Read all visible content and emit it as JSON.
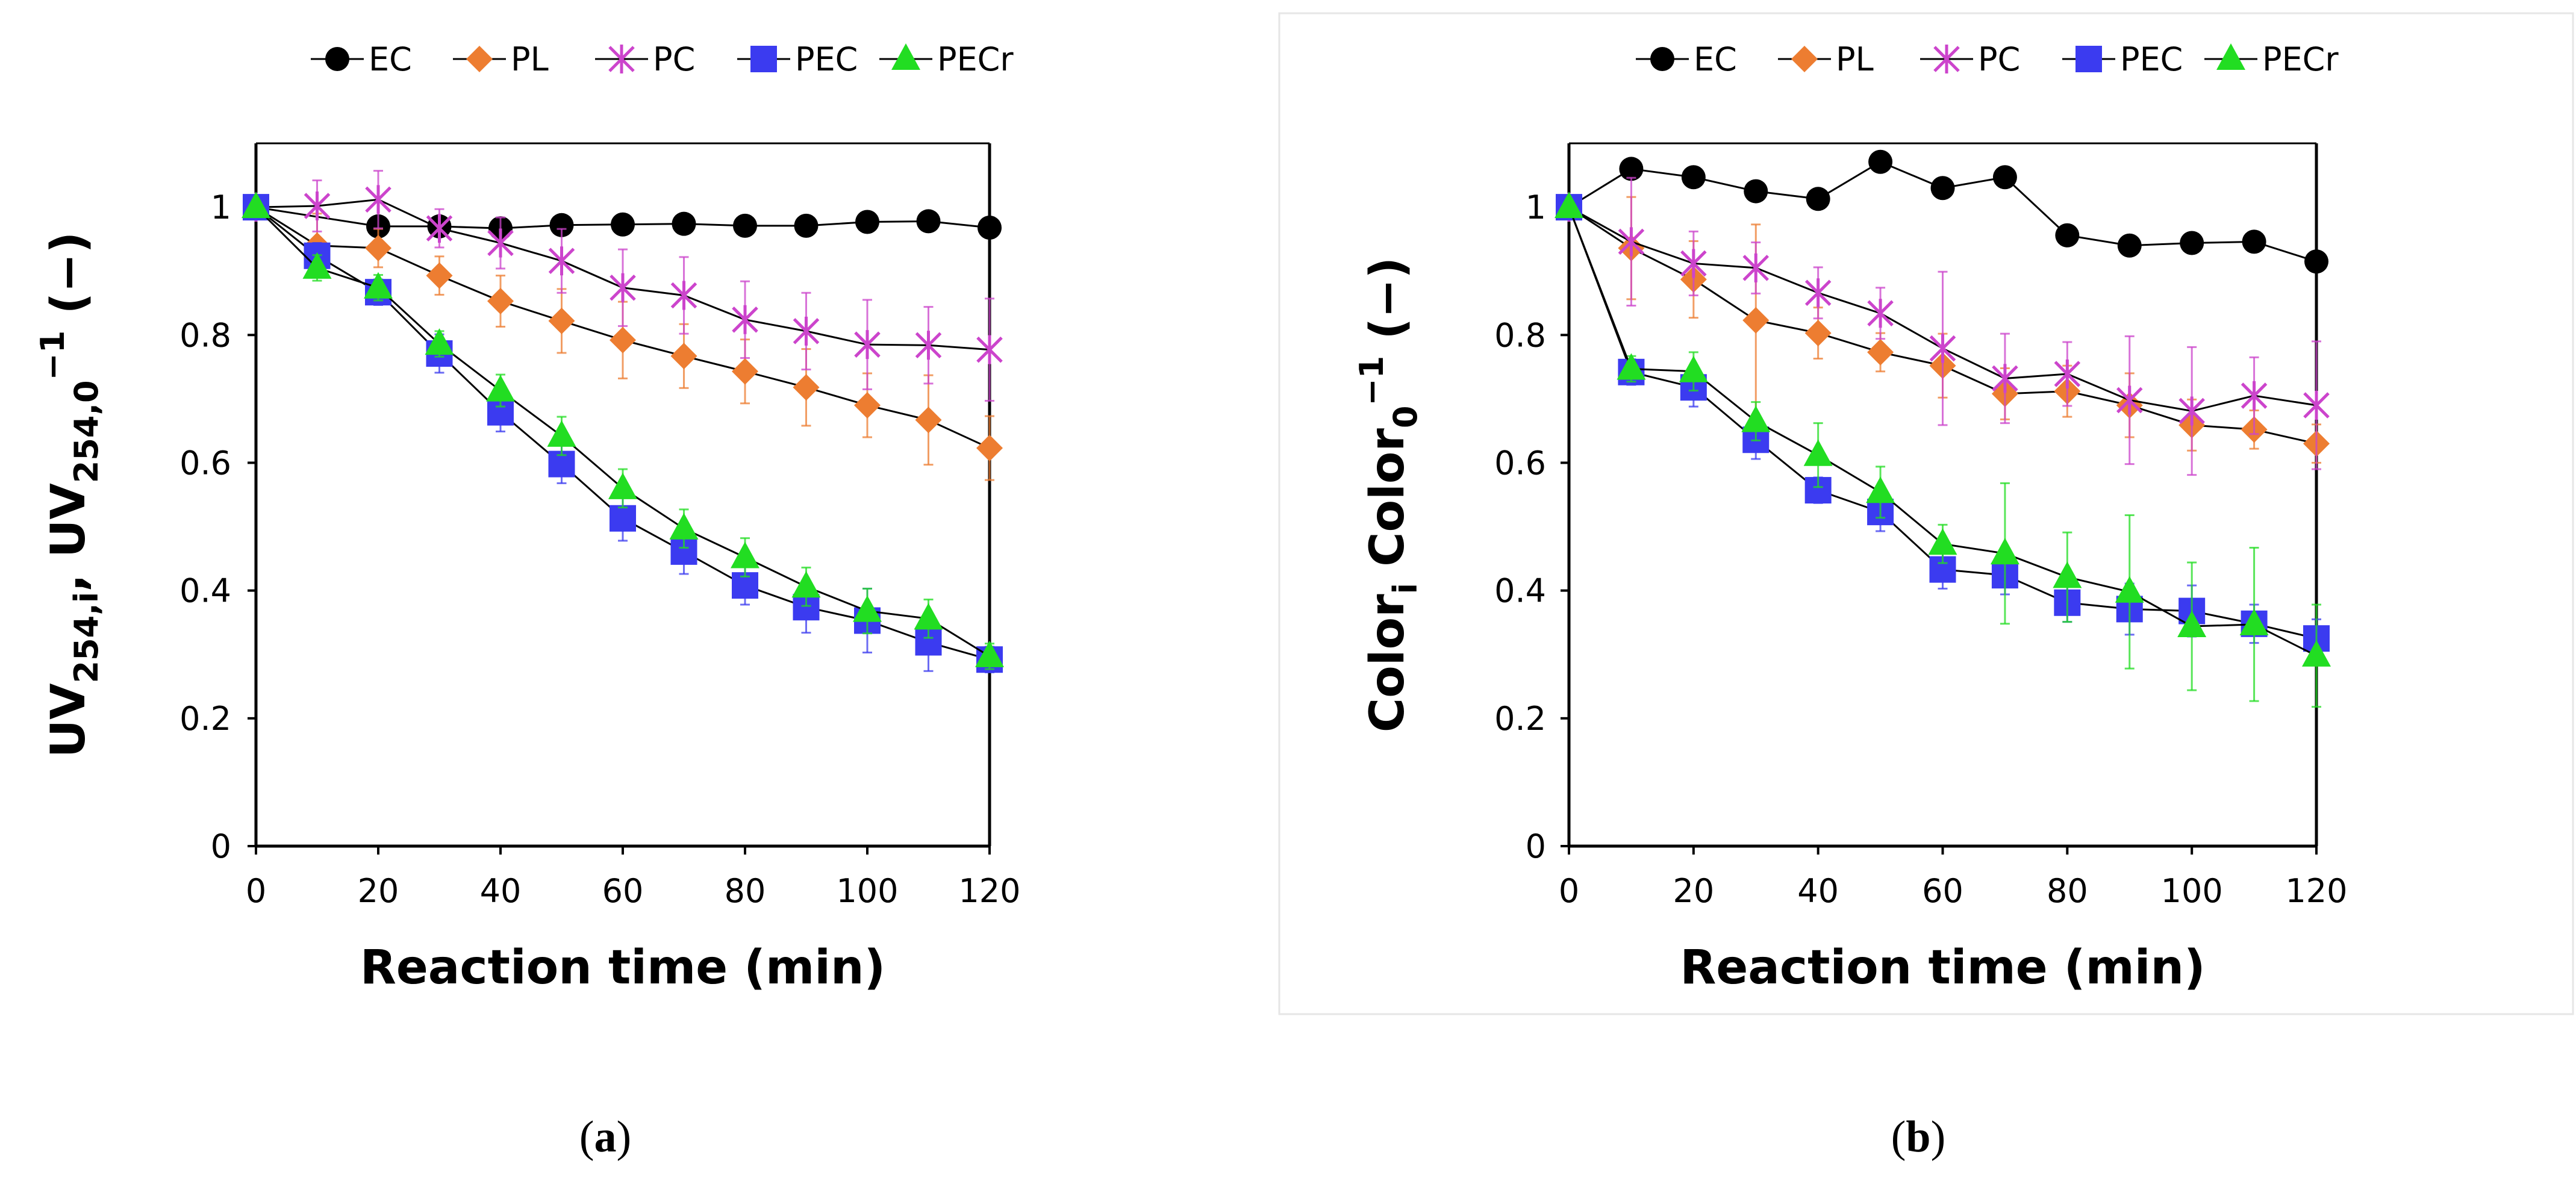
{
  "chart_data": [
    {
      "type": "line",
      "panel_label": "a",
      "title": "",
      "xlabel": "Reaction time (min)",
      "ylabel": {
        "main": "UV",
        "sub1": "254,i",
        "mid": " UV",
        "sub2": "254,0",
        "sup": "−1",
        "suffix": " (−)"
      },
      "xlim": [
        0,
        120
      ],
      "ylim": [
        0,
        1.1
      ],
      "xticks": [
        0,
        20,
        40,
        60,
        80,
        100,
        120
      ],
      "yticks": [
        0,
        0.2,
        0.4,
        0.6,
        0.8,
        1
      ],
      "ytick_labels": [
        "0",
        "0.2",
        "0.4",
        "0.6",
        "0.8",
        "1"
      ],
      "xtick_labels": [
        "0",
        "20",
        "40",
        "60",
        "80",
        "100",
        "120"
      ],
      "legend": {
        "position": "top",
        "entries": [
          "EC",
          "PL",
          "PC",
          "PEC",
          "PECr"
        ]
      },
      "x": [
        0,
        10,
        20,
        30,
        40,
        50,
        60,
        70,
        80,
        90,
        100,
        110,
        120
      ],
      "series": [
        {
          "name": "EC",
          "color": "#000000",
          "marker": "circle",
          "x": [
            0,
            20,
            30,
            40,
            50,
            60,
            70,
            80,
            90,
            100,
            110,
            120
          ],
          "values": [
            1.0,
            0.97,
            0.97,
            0.967,
            0.972,
            0.973,
            0.974,
            0.971,
            0.971,
            0.977,
            0.978,
            0.968
          ],
          "errors": [
            0,
            0,
            0,
            0,
            0,
            0,
            0,
            0,
            0,
            0,
            0,
            0
          ]
        },
        {
          "name": "PL",
          "color": "#ED7D31",
          "marker": "diamond",
          "x": [
            0,
            10,
            20,
            30,
            40,
            50,
            60,
            70,
            80,
            90,
            100,
            110,
            120
          ],
          "values": [
            1.0,
            0.94,
            0.936,
            0.893,
            0.853,
            0.822,
            0.792,
            0.767,
            0.743,
            0.718,
            0.69,
            0.667,
            0.623
          ],
          "errors": [
            0,
            0.05,
            0.03,
            0.03,
            0.04,
            0.05,
            0.06,
            0.05,
            0.05,
            0.06,
            0.05,
            0.07,
            0.05
          ]
        },
        {
          "name": "PC",
          "color": "#CC44CC",
          "marker": "asterisk",
          "x": [
            0,
            10,
            20,
            30,
            40,
            50,
            60,
            70,
            80,
            90,
            100,
            110,
            120
          ],
          "values": [
            1.0,
            1.002,
            1.012,
            0.967,
            0.944,
            0.916,
            0.874,
            0.862,
            0.824,
            0.806,
            0.785,
            0.784,
            0.777
          ],
          "errors": [
            0,
            0.04,
            0.045,
            0.03,
            0.04,
            0.05,
            0.06,
            0.06,
            0.06,
            0.06,
            0.07,
            0.06,
            0.08
          ]
        },
        {
          "name": "PEC",
          "color": "#3B3BF0",
          "marker": "square",
          "x": [
            0,
            10,
            20,
            30,
            40,
            50,
            60,
            70,
            80,
            90,
            100,
            110,
            120
          ],
          "values": [
            1.0,
            0.924,
            0.867,
            0.771,
            0.679,
            0.598,
            0.513,
            0.461,
            0.408,
            0.374,
            0.353,
            0.319,
            0.292
          ],
          "errors": [
            0,
            0.02,
            0.02,
            0.03,
            0.03,
            0.03,
            0.035,
            0.035,
            0.03,
            0.04,
            0.05,
            0.045,
            0.02
          ]
        },
        {
          "name": "PECr",
          "color": "#22DD22",
          "marker": "triangle",
          "x": [
            0,
            10,
            20,
            30,
            40,
            50,
            60,
            70,
            80,
            90,
            100,
            110,
            120
          ],
          "values": [
            1.0,
            0.905,
            0.874,
            0.786,
            0.713,
            0.642,
            0.56,
            0.497,
            0.452,
            0.406,
            0.368,
            0.356,
            0.297
          ],
          "errors": [
            0,
            0.02,
            0.02,
            0.02,
            0.025,
            0.03,
            0.03,
            0.03,
            0.03,
            0.03,
            0.035,
            0.03,
            0.02
          ]
        }
      ]
    },
    {
      "type": "line",
      "panel_label": "b",
      "title": "",
      "xlabel": "Reaction time (min)",
      "ylabel": {
        "main": "Color",
        "sub1": "i",
        "mid": " Color",
        "sub2": "0",
        "sup": "−1",
        "suffix": " (−)"
      },
      "xlim": [
        0,
        120
      ],
      "ylim": [
        0,
        1.1
      ],
      "xticks": [
        0,
        20,
        40,
        60,
        80,
        100,
        120
      ],
      "yticks": [
        0,
        0.2,
        0.4,
        0.6,
        0.8,
        1
      ],
      "ytick_labels": [
        "0",
        "0.2",
        "0.4",
        "0.6",
        "0.8",
        "1"
      ],
      "xtick_labels": [
        "0",
        "20",
        "40",
        "60",
        "80",
        "100",
        "120"
      ],
      "legend": {
        "position": "top",
        "entries": [
          "EC",
          "PL",
          "PC",
          "PEC",
          "PECr"
        ]
      },
      "x": [
        0,
        10,
        20,
        30,
        40,
        50,
        60,
        70,
        80,
        90,
        100,
        110,
        120
      ],
      "series": [
        {
          "name": "EC",
          "color": "#000000",
          "marker": "circle",
          "x": [
            0,
            10,
            20,
            30,
            40,
            50,
            60,
            70,
            80,
            90,
            100,
            110,
            120
          ],
          "values": [
            1.0,
            1.06,
            1.047,
            1.025,
            1.013,
            1.071,
            1.03,
            1.047,
            0.956,
            0.94,
            0.944,
            0.946,
            0.915
          ],
          "errors": [
            0,
            0,
            0,
            0,
            0,
            0,
            0,
            0,
            0,
            0,
            0,
            0,
            0
          ]
        },
        {
          "name": "PL",
          "color": "#ED7D31",
          "marker": "diamond",
          "x": [
            0,
            10,
            20,
            30,
            40,
            50,
            60,
            70,
            80,
            90,
            100,
            110,
            120
          ],
          "values": [
            1.0,
            0.936,
            0.887,
            0.823,
            0.803,
            0.773,
            0.752,
            0.708,
            0.712,
            0.69,
            0.659,
            0.652,
            0.63
          ],
          "errors": [
            0,
            0.08,
            0.06,
            0.15,
            0.04,
            0.03,
            0.05,
            0.04,
            0.04,
            0.05,
            0.04,
            0.03,
            0.03
          ]
        },
        {
          "name": "PC",
          "color": "#CC44CC",
          "marker": "asterisk",
          "x": [
            0,
            10,
            20,
            30,
            40,
            50,
            60,
            70,
            80,
            90,
            100,
            110,
            120
          ],
          "values": [
            1.0,
            0.946,
            0.912,
            0.905,
            0.866,
            0.834,
            0.779,
            0.732,
            0.739,
            0.698,
            0.681,
            0.705,
            0.69
          ],
          "errors": [
            0,
            0.1,
            0.05,
            0.04,
            0.04,
            0.04,
            0.12,
            0.07,
            0.05,
            0.1,
            0.1,
            0.06,
            0.1
          ]
        },
        {
          "name": "PEC",
          "color": "#3B3BF0",
          "marker": "square",
          "x": [
            0,
            10,
            20,
            30,
            40,
            50,
            60,
            70,
            80,
            90,
            100,
            110,
            120
          ],
          "values": [
            1.0,
            0.742,
            0.718,
            0.636,
            0.557,
            0.523,
            0.433,
            0.424,
            0.381,
            0.371,
            0.368,
            0.348,
            0.325
          ],
          "errors": [
            0,
            0.02,
            0.03,
            0.03,
            0.02,
            0.03,
            0.03,
            0.03,
            0.03,
            0.04,
            0.04,
            0.03,
            0.03
          ]
        },
        {
          "name": "PECr",
          "color": "#22DD22",
          "marker": "triangle",
          "x": [
            0,
            10,
            20,
            30,
            40,
            50,
            60,
            70,
            80,
            90,
            100,
            110,
            120
          ],
          "values": [
            1.0,
            0.747,
            0.743,
            0.665,
            0.612,
            0.554,
            0.473,
            0.458,
            0.421,
            0.398,
            0.344,
            0.347,
            0.298
          ],
          "errors": [
            0,
            0.02,
            0.03,
            0.03,
            0.05,
            0.04,
            0.03,
            0.11,
            0.07,
            0.12,
            0.1,
            0.12,
            0.08
          ]
        }
      ]
    }
  ]
}
